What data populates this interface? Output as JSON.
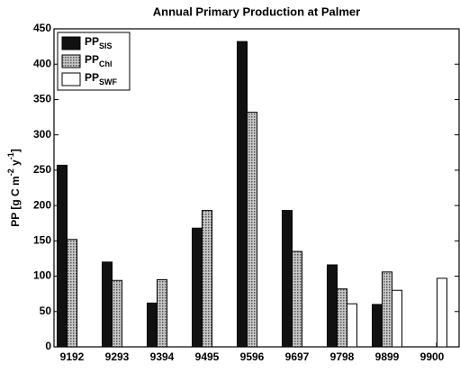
{
  "chart_data": {
    "type": "bar",
    "title": "Annual Primary Production at Palmer",
    "y_label": [
      {
        "text": "PP  [g C m",
        "sup": false
      },
      {
        "text": "-2",
        "sup": true
      },
      {
        "text": " y",
        "sup": false
      },
      {
        "text": "-1",
        "sup": true
      },
      {
        "text": "]",
        "sup": false
      }
    ],
    "categories": [
      "9192",
      "9293",
      "9394",
      "9495",
      "9596",
      "9697",
      "9798",
      "9899",
      "9900"
    ],
    "series": [
      {
        "name": "PP",
        "subscript": "SIS",
        "color": "#111111",
        "values": [
          257,
          120,
          62,
          168,
          432,
          193,
          116,
          60,
          null
        ]
      },
      {
        "name": "PP",
        "subscript": "Chl",
        "color": "#a8a8a8",
        "values": [
          152,
          94,
          95,
          193,
          332,
          135,
          82,
          106,
          null
        ]
      },
      {
        "name": "PP",
        "subscript": "SWF",
        "color": "#ffffff",
        "values": [
          null,
          null,
          null,
          null,
          null,
          null,
          61,
          80,
          97
        ]
      }
    ],
    "ylim": [
      0,
      450
    ],
    "yticks": [
      0,
      50,
      100,
      150,
      200,
      250,
      300,
      350,
      400,
      450
    ],
    "legend": "upper left"
  }
}
